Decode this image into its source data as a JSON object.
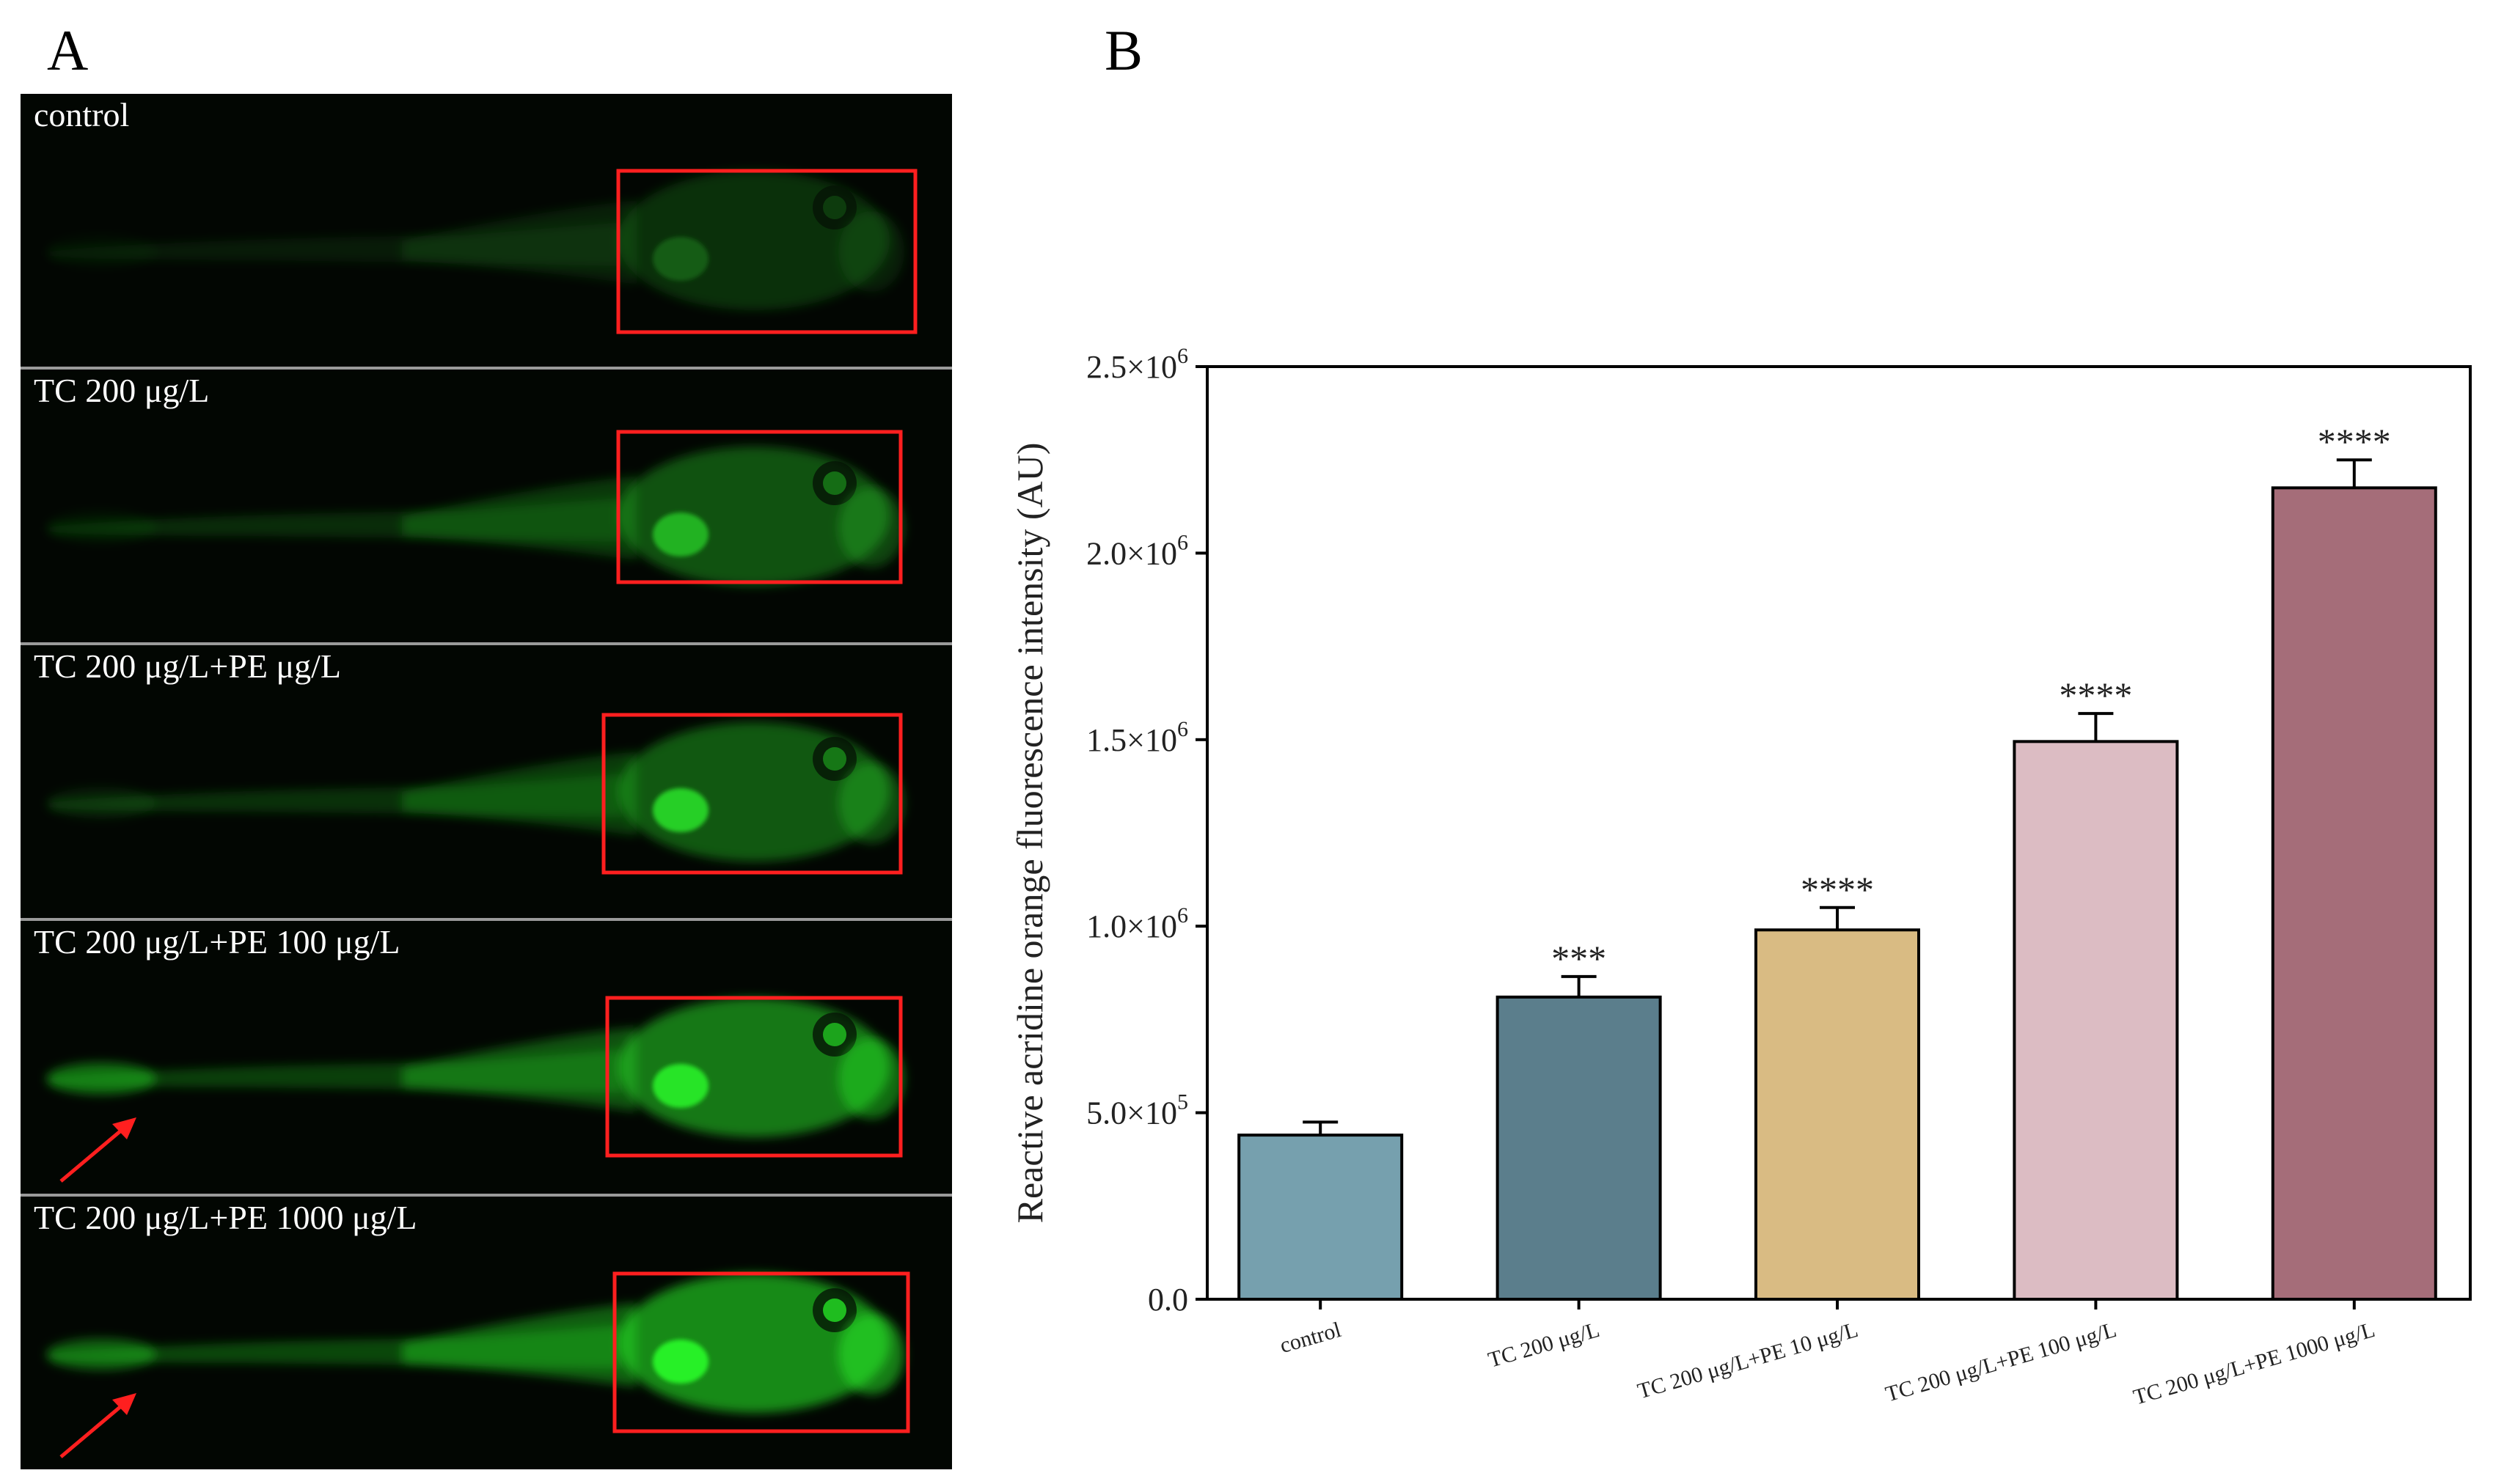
{
  "panel_a": {
    "letter": "A",
    "images": [
      {
        "label": "control"
      },
      {
        "label": "TC 200 μg/L"
      },
      {
        "label": "TC 200 μg/L+PE μg/L"
      },
      {
        "label": "TC 200 μg/L+PE 100 μg/L"
      },
      {
        "label": "TC 200 μg/L+PE 1000 μg/L"
      }
    ]
  },
  "panel_b": {
    "letter": "B"
  },
  "chart_data": {
    "type": "bar",
    "categories": [
      "control",
      "TC 200 μg/L",
      "TC 200 μg/L+PE 10 μg/L",
      "TC 200 μg/L+PE 100 μg/L",
      "TC 200 μg/L+PE 1000 μg/L"
    ],
    "values": [
      440000,
      810000,
      990000,
      1495000,
      2175000
    ],
    "errors": [
      35000,
      55000,
      60000,
      75000,
      75000
    ],
    "significance": [
      "",
      "***",
      "****",
      "****",
      "****"
    ],
    "colors": [
      "#76a0ae",
      "#5b7e8c",
      "#d9bb83",
      "#dcbcc3",
      "#a56d79"
    ],
    "ylabel": "Reactive acridine orange fluorescence intensity (AU)",
    "xlabel": "",
    "ylim": [
      0,
      2500000
    ],
    "yticks": [
      {
        "value": 0,
        "mantissa": "0.0",
        "exp": ""
      },
      {
        "value": 500000,
        "mantissa": "5.0×10",
        "exp": "5"
      },
      {
        "value": 1000000,
        "mantissa": "1.0×10",
        "exp": "6"
      },
      {
        "value": 1500000,
        "mantissa": "1.5×10",
        "exp": "6"
      },
      {
        "value": 2000000,
        "mantissa": "2.0×10",
        "exp": "6"
      },
      {
        "value": 2500000,
        "mantissa": "2.5×10",
        "exp": "6"
      }
    ],
    "grid": false,
    "legend": "none"
  }
}
